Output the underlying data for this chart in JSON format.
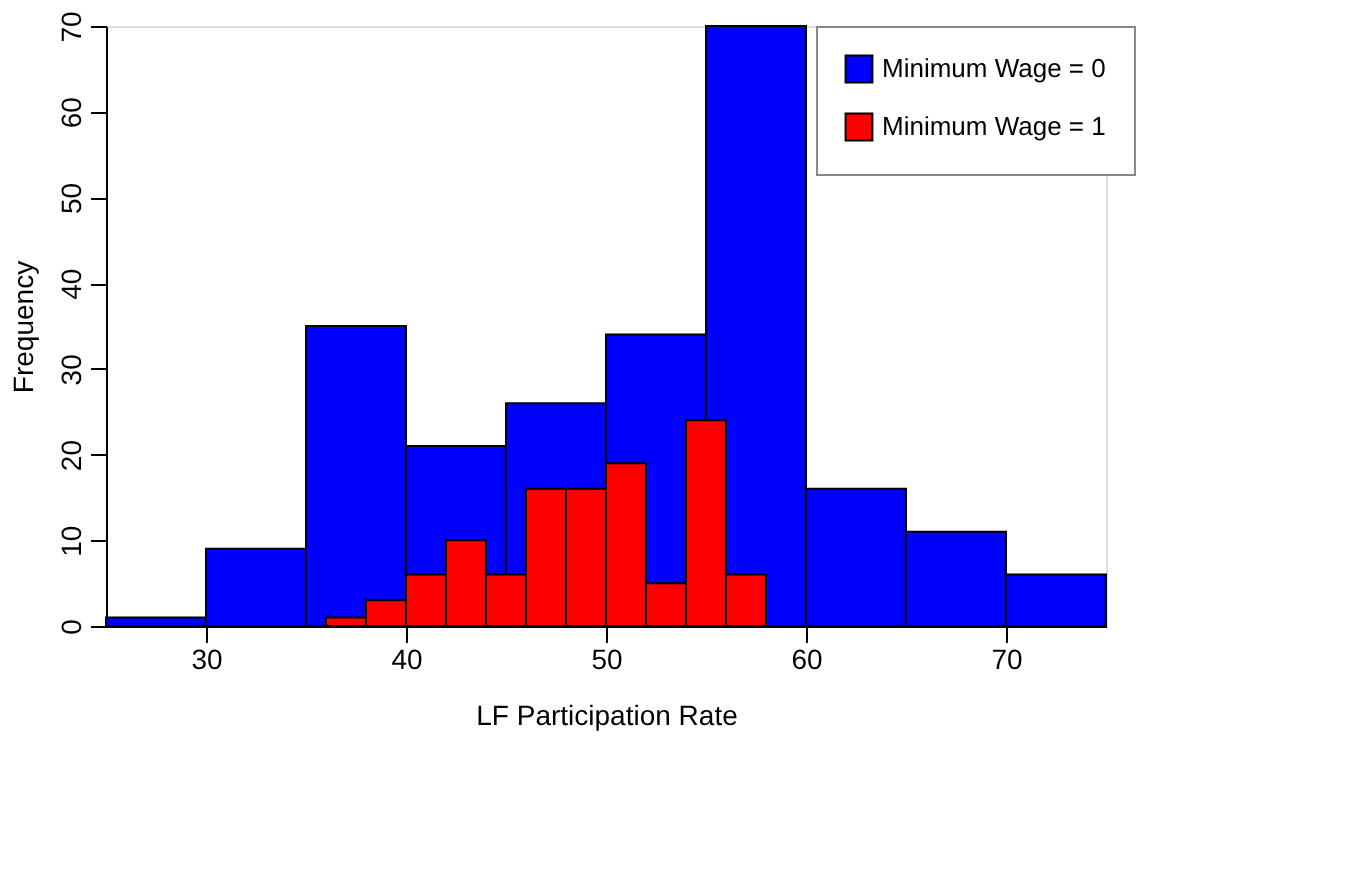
{
  "chart_data": {
    "type": "bar",
    "xlabel": "LF Participation Rate",
    "ylabel": "Frequency",
    "series": [
      {
        "name": "Minimum Wage = 0",
        "color": "#0000ff",
        "x": [
          27.5,
          32.5,
          37.5,
          42.5,
          47.5,
          52.5,
          57.5,
          62.5,
          67.5,
          72.5
        ],
        "values": [
          1,
          9,
          35,
          21,
          26,
          34,
          70,
          16,
          11,
          6
        ]
      },
      {
        "name": "Minimum Wage = 1",
        "color": "#ff0000",
        "x": [
          37,
          39,
          41,
          43,
          45,
          47,
          49,
          51,
          53,
          55,
          57
        ],
        "values": [
          1,
          3,
          6,
          10,
          6,
          16,
          16,
          19,
          5,
          24,
          6
        ]
      }
    ],
    "xlim": [
      25,
      75
    ],
    "xticks": [
      30,
      40,
      50,
      60,
      70
    ],
    "ylim": [
      0,
      70
    ],
    "yticks": [
      0,
      10,
      20,
      30,
      40,
      50,
      60,
      70
    ],
    "grid": false,
    "legend": "top right"
  }
}
